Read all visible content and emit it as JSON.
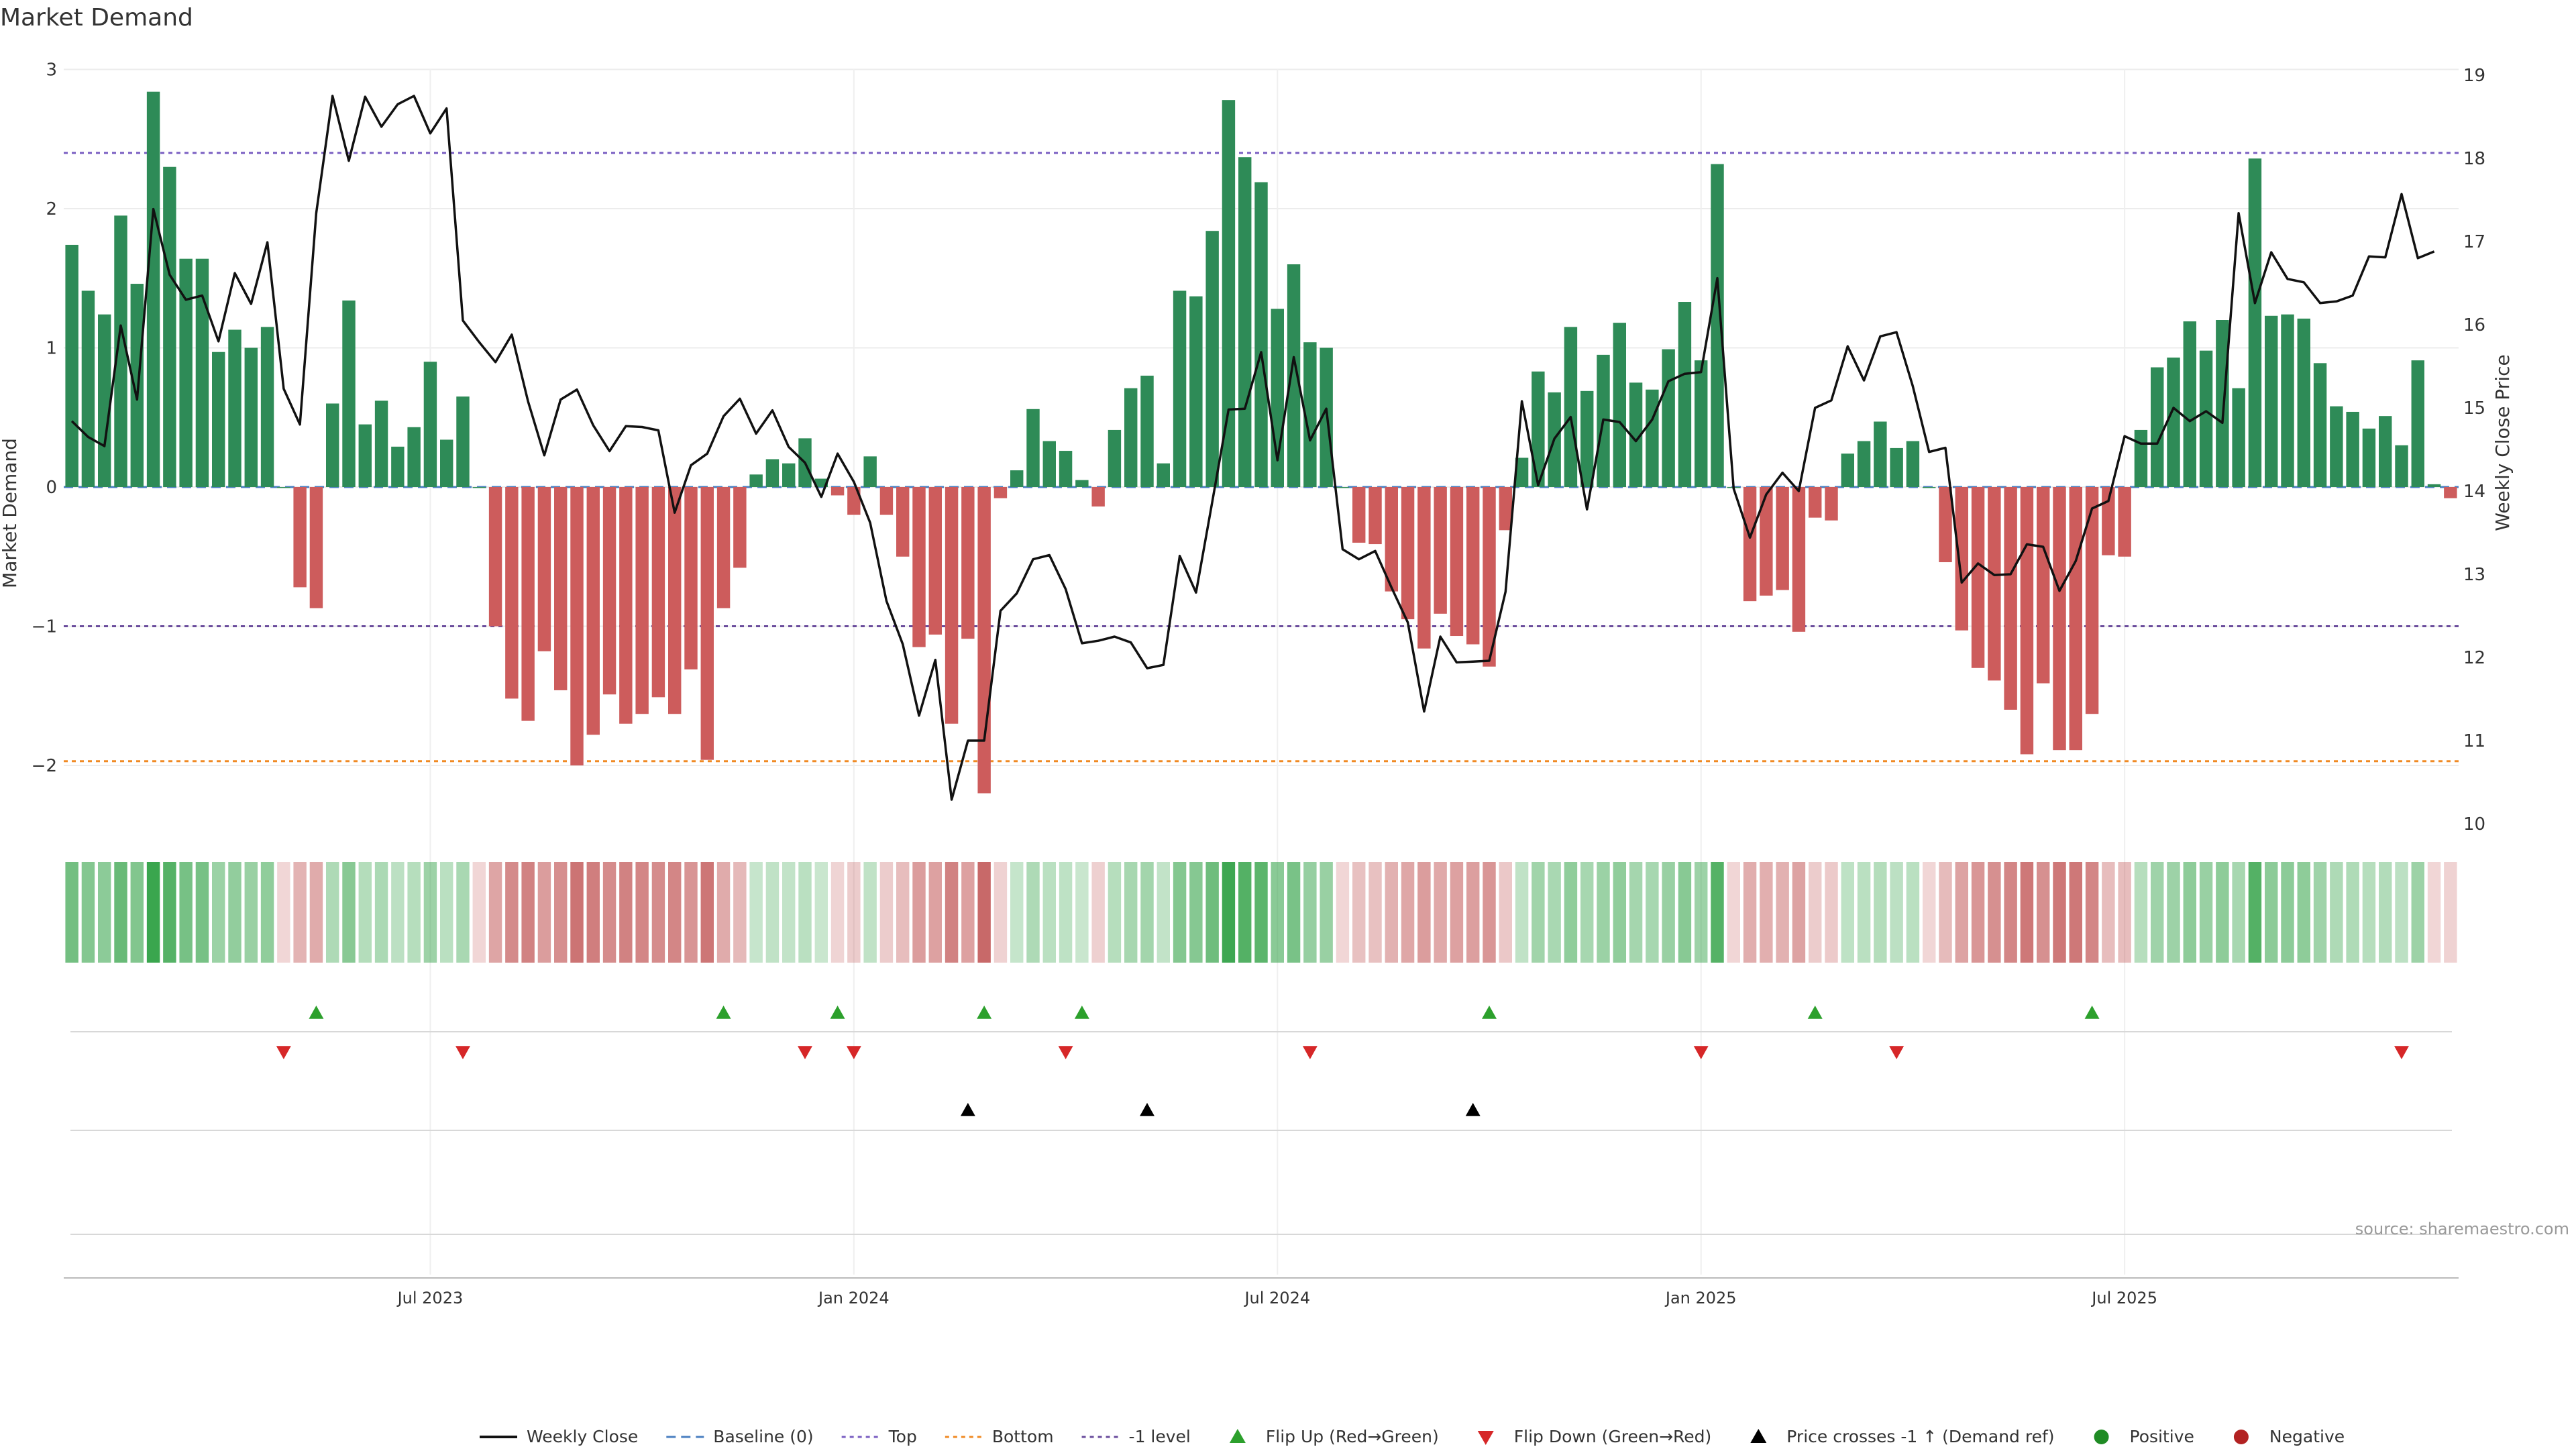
{
  "source": "source: sharemaestro.com",
  "chart_data": {
    "type": "bar+line",
    "title": "Market Demand",
    "ylabel": "Market Demand",
    "y2label": "Weekly Close Price",
    "ylim": [
      -2.45,
      3.0
    ],
    "y2lim": [
      9.9,
      19.0
    ],
    "yticks": [
      {
        "v": 3,
        "label": "3"
      },
      {
        "v": 2,
        "label": "2"
      },
      {
        "v": 1,
        "label": "1"
      },
      {
        "v": 0,
        "label": "0"
      },
      {
        "v": -1,
        "label": "−1"
      },
      {
        "v": -2,
        "label": "−2"
      }
    ],
    "y2ticks": [
      {
        "v": 19,
        "label": "19"
      },
      {
        "v": 18,
        "label": "18"
      },
      {
        "v": 17,
        "label": "17"
      },
      {
        "v": 16,
        "label": "16"
      },
      {
        "v": 15,
        "label": "15"
      },
      {
        "v": 14,
        "label": "14"
      },
      {
        "v": 13,
        "label": "13"
      },
      {
        "v": 12,
        "label": "12"
      },
      {
        "v": 11,
        "label": "11"
      },
      {
        "v": 10,
        "label": "10"
      }
    ],
    "xticks": [
      {
        "i": 22,
        "label": "Jul 2023"
      },
      {
        "i": 48,
        "label": "Jan 2024"
      },
      {
        "i": 74,
        "label": "Jul 2024"
      },
      {
        "i": 100,
        "label": "Jan 2025"
      },
      {
        "i": 126,
        "label": "Jul 2025"
      }
    ],
    "reference_lines": {
      "top": 2.4,
      "bottom": -1.97,
      "minus_one": -1.0
    },
    "demand": [
      1.74,
      1.41,
      1.24,
      1.95,
      1.46,
      2.84,
      2.3,
      1.64,
      1.64,
      0.97,
      1.13,
      1.0,
      1.15,
      0.0,
      -0.72,
      -0.87,
      0.6,
      1.34,
      0.45,
      0.62,
      0.29,
      0.43,
      0.9,
      0.34,
      0.65,
      0.0,
      -1.0,
      -1.52,
      -1.68,
      -1.18,
      -1.46,
      -2.0,
      -1.78,
      -1.49,
      -1.7,
      -1.63,
      -1.51,
      -1.63,
      -1.31,
      -1.96,
      -0.87,
      -0.58,
      0.09,
      0.2,
      0.17,
      0.35,
      0.06,
      -0.06,
      -0.2,
      0.22,
      -0.2,
      -0.5,
      -1.15,
      -1.06,
      -1.7,
      -1.09,
      -2.2,
      -0.08,
      0.12,
      0.56,
      0.33,
      0.26,
      0.05,
      -0.14,
      0.41,
      0.71,
      0.8,
      0.17,
      1.41,
      1.37,
      1.84,
      2.78,
      2.37,
      2.19,
      1.28,
      1.6,
      1.04,
      1.0,
      0.0,
      -0.4,
      -0.41,
      -0.75,
      -0.95,
      -1.16,
      -0.91,
      -1.07,
      -1.13,
      -1.29,
      -0.31,
      0.21,
      0.83,
      0.68,
      1.15,
      0.69,
      0.95,
      1.18,
      0.75,
      0.7,
      0.99,
      1.33,
      0.91,
      2.32,
      0.0,
      -0.82,
      -0.78,
      -0.74,
      -1.04,
      -0.22,
      -0.24,
      0.24,
      0.33,
      0.47,
      0.28,
      0.33,
      0.0,
      -0.54,
      -1.03,
      -1.3,
      -1.39,
      -1.6,
      -1.92,
      -1.41,
      -1.89,
      -1.89,
      -1.63,
      -0.49,
      -0.5,
      0.41,
      0.86,
      0.93,
      1.19,
      0.98,
      1.2,
      0.71,
      2.36,
      1.23,
      1.24,
      1.21,
      0.89,
      0.58,
      0.54,
      0.42,
      0.51,
      0.3,
      0.91,
      0.02,
      -0.08
    ],
    "close": [
      14.84,
      14.65,
      14.54,
      15.99,
      15.1,
      17.39,
      16.6,
      16.3,
      16.35,
      15.8,
      16.62,
      16.25,
      16.99,
      15.23,
      14.8,
      17.34,
      18.75,
      17.97,
      18.74,
      18.38,
      18.65,
      18.75,
      18.3,
      18.6,
      16.05,
      15.79,
      15.55,
      15.88,
      15.08,
      14.43,
      15.1,
      15.22,
      14.79,
      14.48,
      14.78,
      14.77,
      14.73,
      13.74,
      14.31,
      14.45,
      14.9,
      15.11,
      14.69,
      14.97,
      14.53,
      14.34,
      13.93,
      14.45,
      14.11,
      13.62,
      12.68,
      12.16,
      11.3,
      11.97,
      10.29,
      11.0,
      11.0,
      12.56,
      12.77,
      13.18,
      13.23,
      12.82,
      12.17,
      12.2,
      12.25,
      12.18,
      11.87,
      11.91,
      13.22,
      12.78,
      13.87,
      14.98,
      14.99,
      15.67,
      14.37,
      15.61,
      14.61,
      14.99,
      13.3,
      13.18,
      13.28,
      12.84,
      12.42,
      11.35,
      12.25,
      11.94,
      11.95,
      11.96,
      12.79,
      15.08,
      14.07,
      14.63,
      14.89,
      13.78,
      14.86,
      14.83,
      14.6,
      14.86,
      15.32,
      15.41,
      15.43,
      16.56,
      14.03,
      13.44,
      13.96,
      14.22,
      14.0,
      15.0,
      15.09,
      15.74,
      15.33,
      15.86,
      15.91,
      15.26,
      14.47,
      14.52,
      12.9,
      13.13,
      12.99,
      13.0,
      13.36,
      13.33,
      12.8,
      13.16,
      13.79,
      13.88,
      14.66,
      14.57,
      14.57,
      15.0,
      14.84,
      14.96,
      14.82,
      17.34,
      16.26,
      16.87,
      16.55,
      16.51,
      16.26,
      16.28,
      16.35,
      16.82,
      16.81,
      17.57,
      16.8,
      16.88
    ]
  },
  "legend": [
    {
      "key": "weekly_close",
      "label": "Weekly Close",
      "color": "#111111"
    },
    {
      "key": "baseline",
      "label": "Baseline (0)",
      "color": "#4a7fc1"
    },
    {
      "key": "top",
      "label": "Top",
      "color": "#7a5ec2"
    },
    {
      "key": "bottom",
      "label": "Bottom",
      "color": "#f08a24"
    },
    {
      "key": "minus_one",
      "label": "-1 level",
      "color": "#6a4c9c"
    },
    {
      "key": "flip_up",
      "label": "Flip Up (Red→Green)",
      "color": "#2ca02c"
    },
    {
      "key": "flip_down",
      "label": "Flip Down (Green→Red)",
      "color": "#d62728"
    },
    {
      "key": "price_cross",
      "label": "Price crosses -1 ↑ (Demand ref)",
      "color": "#000000"
    },
    {
      "key": "positive",
      "label": "Positive",
      "color": "#1f8b24"
    },
    {
      "key": "negative",
      "label": "Negative",
      "color": "#b22222"
    }
  ],
  "markers": {
    "flip_up": [
      15,
      40,
      47,
      56,
      62,
      87,
      107,
      124
    ],
    "flip_down": [
      13,
      24,
      45,
      48,
      61,
      76,
      100,
      112,
      143
    ],
    "price_cross": [
      55,
      66,
      86
    ]
  },
  "colors": {
    "pos_bar": "#2e8b57",
    "neg_bar": "#cd5c5c"
  }
}
